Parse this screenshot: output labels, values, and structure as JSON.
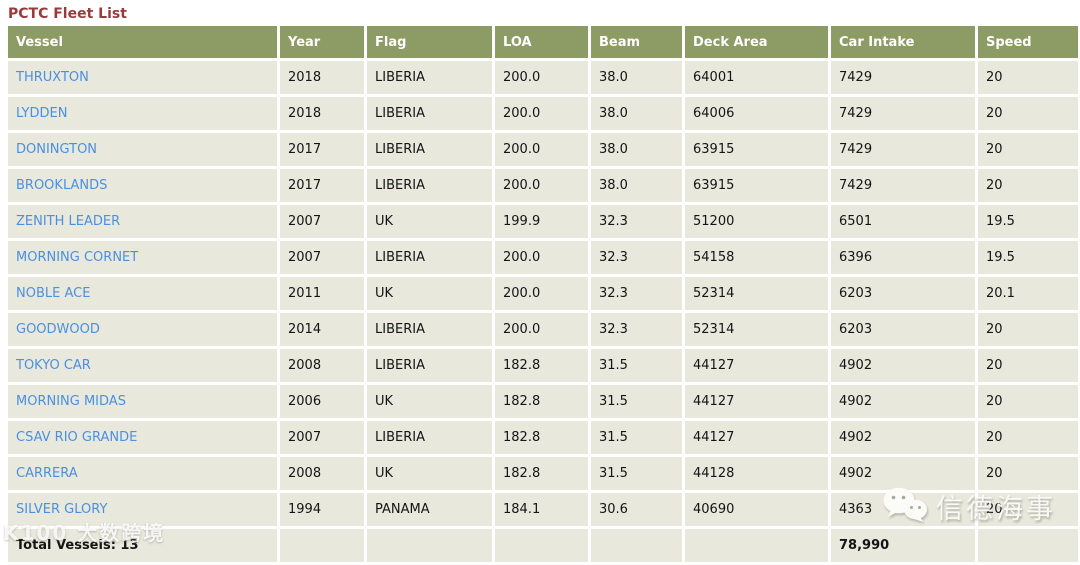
{
  "page": {
    "title": "PCTC Fleet List"
  },
  "colors": {
    "title": "#9a3b3b",
    "header_bg": "#8d9b64",
    "header_text": "#ffffff",
    "row_bg": "#e8e8dc",
    "link": "#4a90e2"
  },
  "table": {
    "columns": [
      "Vessel",
      "Year",
      "Flag",
      "LOA",
      "Beam",
      "Deck Area",
      "Car Intake",
      "Speed"
    ],
    "rows": [
      {
        "vessel": "THRUXTON",
        "year": "2018",
        "flag": "LIBERIA",
        "loa": "200.0",
        "beam": "38.0",
        "deck_area": "64001",
        "car_intake": "7429",
        "speed": "20"
      },
      {
        "vessel": "LYDDEN",
        "year": "2018",
        "flag": "LIBERIA",
        "loa": "200.0",
        "beam": "38.0",
        "deck_area": "64006",
        "car_intake": "7429",
        "speed": "20"
      },
      {
        "vessel": "DONINGTON",
        "year": "2017",
        "flag": "LIBERIA",
        "loa": "200.0",
        "beam": "38.0",
        "deck_area": "63915",
        "car_intake": "7429",
        "speed": "20"
      },
      {
        "vessel": "BROOKLANDS",
        "year": "2017",
        "flag": "LIBERIA",
        "loa": "200.0",
        "beam": "38.0",
        "deck_area": "63915",
        "car_intake": "7429",
        "speed": "20"
      },
      {
        "vessel": "ZENITH LEADER",
        "year": "2007",
        "flag": "UK",
        "loa": "199.9",
        "beam": "32.3",
        "deck_area": "51200",
        "car_intake": "6501",
        "speed": "19.5"
      },
      {
        "vessel": "MORNING CORNET",
        "year": "2007",
        "flag": "LIBERIA",
        "loa": "200.0",
        "beam": "32.3",
        "deck_area": "54158",
        "car_intake": "6396",
        "speed": "19.5"
      },
      {
        "vessel": "NOBLE ACE",
        "year": "2011",
        "flag": "UK",
        "loa": "200.0",
        "beam": "32.3",
        "deck_area": "52314",
        "car_intake": "6203",
        "speed": "20.1"
      },
      {
        "vessel": "GOODWOOD",
        "year": "2014",
        "flag": "LIBERIA",
        "loa": "200.0",
        "beam": "32.3",
        "deck_area": "52314",
        "car_intake": "6203",
        "speed": "20"
      },
      {
        "vessel": "TOKYO CAR",
        "year": "2008",
        "flag": "LIBERIA",
        "loa": "182.8",
        "beam": "31.5",
        "deck_area": "44127",
        "car_intake": "4902",
        "speed": "20"
      },
      {
        "vessel": "MORNING MIDAS",
        "year": "2006",
        "flag": "UK",
        "loa": "182.8",
        "beam": "31.5",
        "deck_area": "44127",
        "car_intake": "4902",
        "speed": "20"
      },
      {
        "vessel": "CSAV RIO GRANDE",
        "year": "2007",
        "flag": "LIBERIA",
        "loa": "182.8",
        "beam": "31.5",
        "deck_area": "44127",
        "car_intake": "4902",
        "speed": "20"
      },
      {
        "vessel": "CARRERA",
        "year": "2008",
        "flag": "UK",
        "loa": "182.8",
        "beam": "31.5",
        "deck_area": "44128",
        "car_intake": "4902",
        "speed": "20"
      },
      {
        "vessel": "SILVER GLORY",
        "year": "1994",
        "flag": "PANAMA",
        "loa": "184.1",
        "beam": "30.6",
        "deck_area": "40690",
        "car_intake": "4363",
        "speed": "20"
      }
    ],
    "total": {
      "label": "Total Vessels: 13",
      "car_intake_total": "78,990"
    }
  },
  "watermarks": {
    "left_text": "K100 大数跨境",
    "right_text": "信德海事"
  }
}
